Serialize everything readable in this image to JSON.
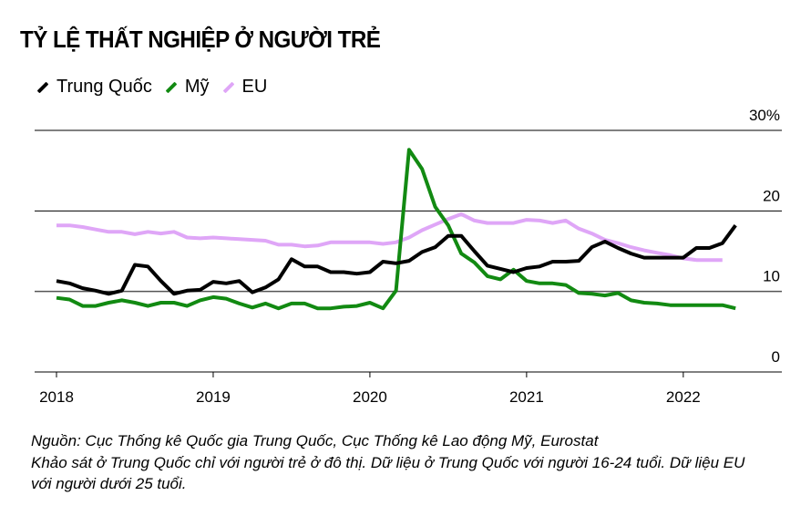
{
  "chart_data": {
    "type": "line",
    "title": "TỶ LỆ THẤT NGHIỆP Ở NGƯỜI TRẺ",
    "x_start": "2018-01",
    "x_unit": "month",
    "x_tick_labels": [
      "2018",
      "2019",
      "2020",
      "2021",
      "2022"
    ],
    "y_tick_labels": [
      "0",
      "10",
      "20",
      "30%"
    ],
    "y_ticks": [
      0,
      10,
      20,
      30
    ],
    "ylim": [
      0,
      30
    ],
    "grid": true,
    "legend_position": "top-left",
    "series": [
      {
        "name": "Trung Quốc",
        "color": "#000000",
        "values": [
          11.3,
          11.0,
          10.4,
          10.1,
          9.7,
          10.1,
          13.3,
          13.1,
          11.3,
          9.7,
          10.1,
          10.2,
          11.2,
          11.0,
          11.3,
          9.9,
          10.5,
          11.5,
          14.0,
          13.1,
          13.1,
          12.4,
          12.4,
          12.2,
          12.4,
          13.7,
          13.5,
          13.8,
          14.9,
          15.5,
          16.9,
          16.9,
          15.0,
          13.2,
          12.8,
          12.4,
          12.9,
          13.1,
          13.7,
          13.7,
          13.8,
          15.5,
          16.2,
          15.4,
          14.7,
          14.2,
          14.2,
          14.2,
          14.2,
          15.4,
          15.4,
          16.0,
          18.2
        ]
      },
      {
        "name": "Mỹ",
        "color": "#128a12",
        "values": [
          9.2,
          9.0,
          8.2,
          8.2,
          8.6,
          8.9,
          8.6,
          8.2,
          8.6,
          8.6,
          8.2,
          8.9,
          9.3,
          9.1,
          8.5,
          8.0,
          8.5,
          7.9,
          8.5,
          8.5,
          7.9,
          7.9,
          8.1,
          8.2,
          8.6,
          7.9,
          10.1,
          27.6,
          25.2,
          20.5,
          18.2,
          14.7,
          13.6,
          11.9,
          11.5,
          12.7,
          11.3,
          11.0,
          11.0,
          10.8,
          9.8,
          9.7,
          9.5,
          9.8,
          8.9,
          8.6,
          8.5,
          8.3,
          8.3,
          8.3,
          8.3,
          8.3,
          7.9
        ]
      },
      {
        "name": "EU",
        "color": "#dfa6f7",
        "values": [
          18.2,
          18.2,
          18.0,
          17.7,
          17.4,
          17.4,
          17.1,
          17.4,
          17.2,
          17.4,
          16.7,
          16.6,
          16.7,
          16.6,
          16.5,
          16.4,
          16.3,
          15.8,
          15.8,
          15.6,
          15.7,
          16.1,
          16.1,
          16.1,
          16.1,
          15.9,
          16.1,
          16.7,
          17.6,
          18.3,
          19.0,
          19.6,
          18.8,
          18.5,
          18.5,
          18.5,
          18.9,
          18.8,
          18.5,
          18.8,
          17.8,
          17.2,
          16.4,
          16.0,
          15.5,
          15.1,
          14.8,
          14.5,
          14.1,
          13.9,
          13.9,
          13.9
        ]
      }
    ]
  },
  "footnote": {
    "line1": "Nguồn: Cục Thống kê Quốc gia Trung Quốc, Cục Thống kê Lao động Mỹ, Eurostat",
    "line2": "Khảo sát ở Trung Quốc chỉ với người trẻ ở đô thị. Dữ liệu ở Trung Quốc với người 16-24 tuổi. Dữ liệu EU",
    "line3": "với người dưới 25 tuổi."
  }
}
